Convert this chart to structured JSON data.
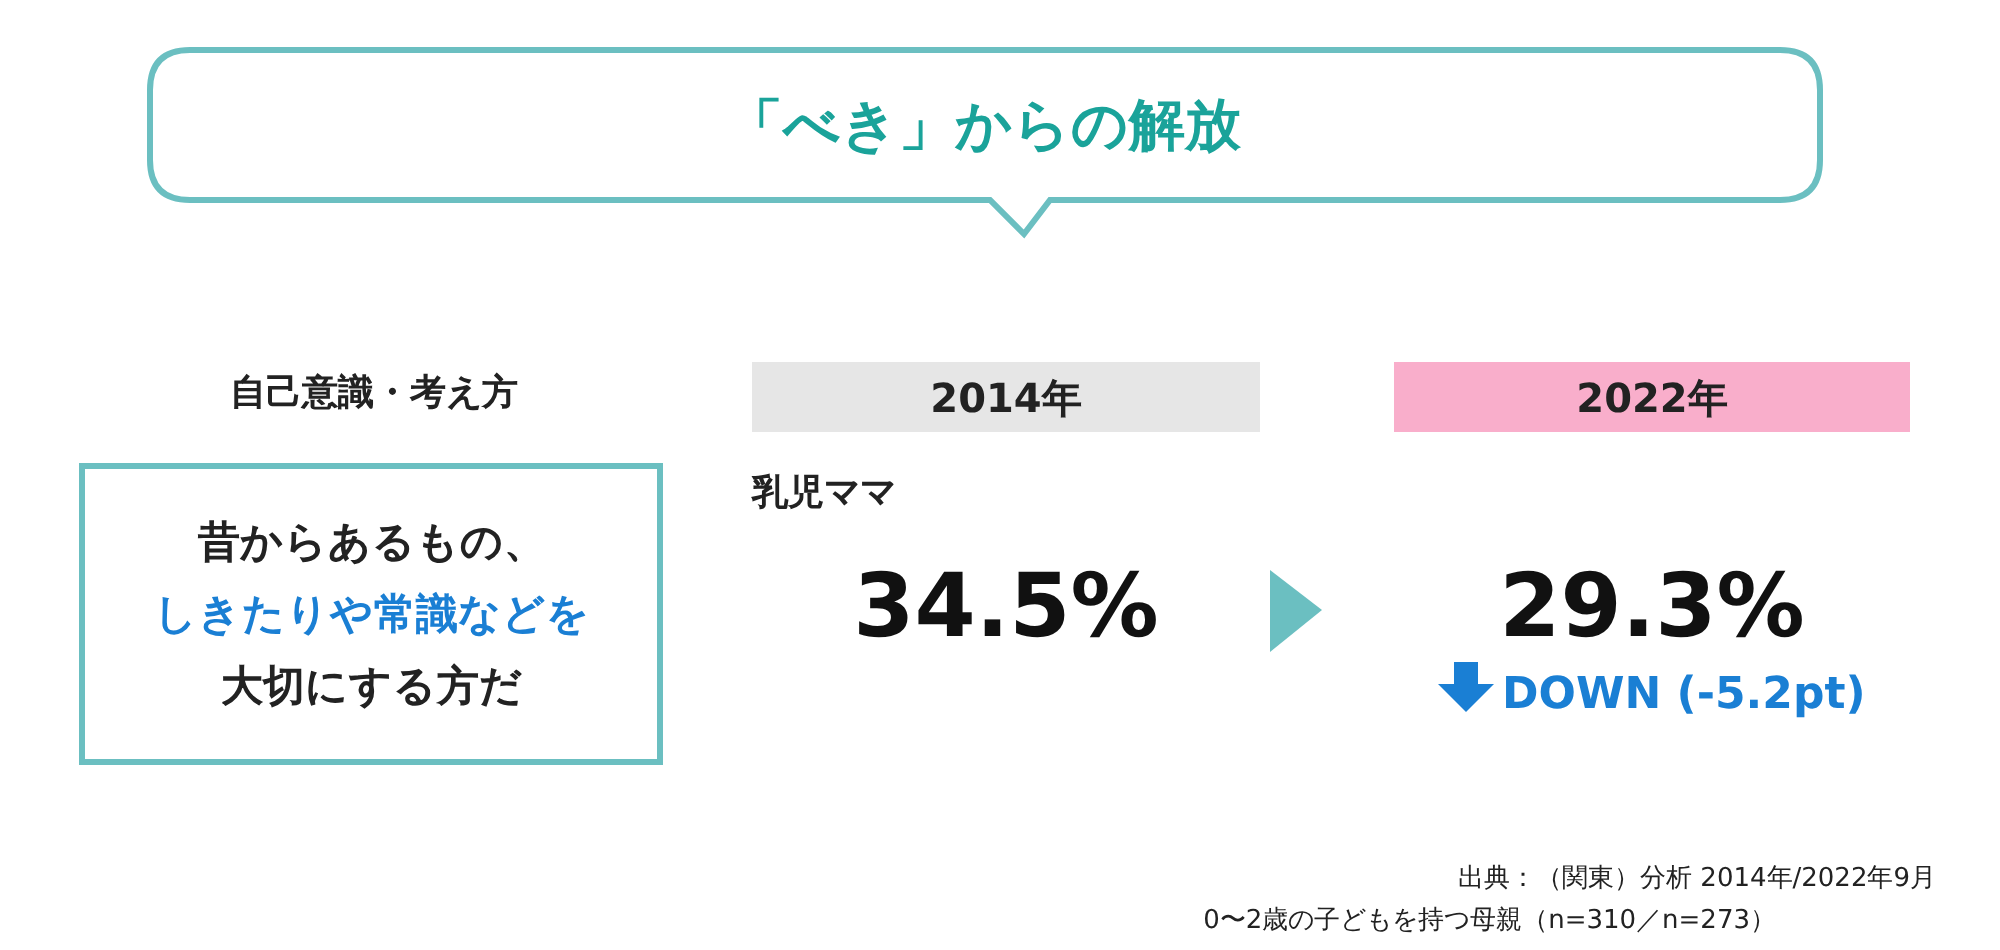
{
  "chart_data": {
    "type": "other",
    "title": "「べき」からの解放",
    "subtitle": "自己意識・考え方",
    "ylabel": "乳児ママ",
    "categories": [
      "2014年",
      "2022年"
    ],
    "values": [
      34.5,
      29.3
    ],
    "value_labels": [
      "34.5%",
      "29.3%"
    ],
    "colors": [
      "#e6e6e6",
      "#f9aecb"
    ],
    "annotations": [
      "昔からあるもの、",
      "しきたりや常識などを",
      "大切にする方だ",
      "DOWN (-5.2pt)",
      "出典：（関東）分析 2014年/2022年9月",
      "0〜2歳の子どもを持つ母親（n=310／n=273）"
    ]
  }
}
